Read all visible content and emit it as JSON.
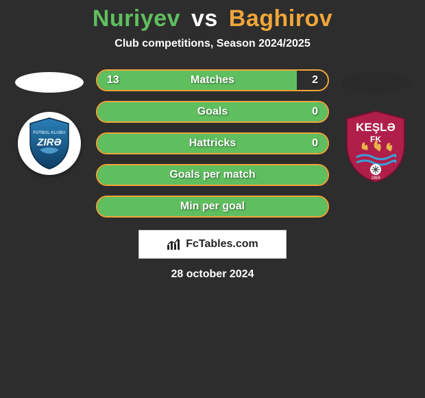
{
  "title": {
    "player1": "Nuriyev",
    "vs": "vs",
    "player2": "Baghirov",
    "color_player1": "#5fbf5f",
    "color_vs": "#ffffff",
    "color_player2": "#f0a63a"
  },
  "subtitle": "Club competitions, Season 2024/2025",
  "colors": {
    "left_accent": "#5fbf5f",
    "right_accent": "#f0a63a",
    "bg": "#2d2d2d"
  },
  "bars": [
    {
      "label": "Matches",
      "left": "13",
      "right": "2",
      "left_pct": 86.7
    },
    {
      "label": "Goals",
      "left": "",
      "right": "0",
      "left_pct": 100
    },
    {
      "label": "Hattricks",
      "left": "",
      "right": "0",
      "left_pct": 100
    },
    {
      "label": "Goals per match",
      "left": "",
      "right": "",
      "left_pct": 100
    },
    {
      "label": "Min per goal",
      "left": "",
      "right": "",
      "left_pct": 100
    }
  ],
  "brand": "FcTables.com",
  "date": "28 october 2024",
  "clubs": {
    "left_name": "ZIRƏ",
    "left_bg": "#1f6aa8",
    "right_name": "KEŞLƏ",
    "right_sub": "FK",
    "right_bg": "#b01e4a"
  }
}
